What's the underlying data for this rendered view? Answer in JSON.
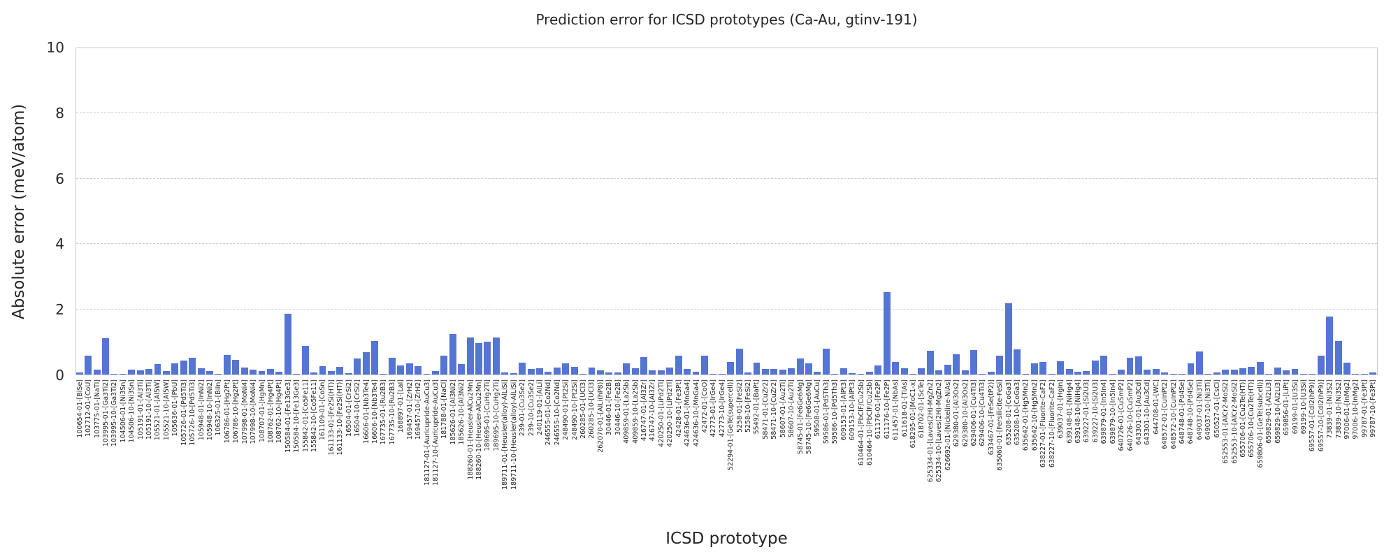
{
  "chart_data": {
    "type": "bar",
    "title": "Prediction error for ICSD prototypes (Ca-Au, gtinv-191)",
    "xlabel": "ICSD prototype",
    "ylabel": "Absolute error (meV/atom)",
    "ylim": [
      0,
      10
    ],
    "yticks": [
      0,
      2,
      4,
      6,
      8,
      10
    ],
    "grid": "horizontal-dashed",
    "legend": "none",
    "bar_color": "#5575d5",
    "grid_color": "#cccccc",
    "spine_color": "#cccccc",
    "text_color": "#262626",
    "categories": [
      "100654-01-[BiSe]",
      "102712-01-[CoU]",
      "103775-01-[NaTl]",
      "103995-01-[Ga3Ti2]",
      "103995-10-[Ga3Ti2]",
      "104506-01-[Ni3Sn]",
      "104506-10-[Ni3Sn]",
      "105191-01-[Al3Ti]",
      "105191-10-[Al3Ti]",
      "105521-01-[Al5W]",
      "105521-10-[Al5W]",
      "105636-01-[PbU]",
      "105726-01-[Pd5Ti3]",
      "105726-10-[Pd5Ti3]",
      "105948-01-[InNi2]",
      "105948-10-[InNi2]",
      "106325-01-[BiIn]",
      "106786-01-[Hg2Pt]",
      "106786-10-[Hg2Pt]",
      "107998-01-[MoNi4]",
      "107998-10-[MoNi4]",
      "108707-01-[HgMn]",
      "108762-01-[Hg4Pt]",
      "108762-10-[Hg4Pt]",
      "150584-01-[Fe13Ge3]",
      "150584-10-[Fe13Ge3]",
      "155842-01-[Co5Fe11]",
      "155842-10-[Co5Fe11]",
      "161109-01-[CoSn]",
      "161133-01-[Fe2Si(HT)]",
      "161133-10-[Fe2Si(HT)]",
      "16504-01-[CrSi2]",
      "16504-10-[CrSi2]",
      "16606-01-[Nb3Te4]",
      "16606-10-[Nb3Te4]",
      "167735-01-[Ru2B3]",
      "167735-10-[Ru2B3]",
      "168897-01-[LaI]",
      "169457-01-[ZrH2]",
      "169457-10-[ZrH2]",
      "181127-01-[Auricupride-AuCu3]",
      "181127-10-[Auricupride-AuCu3]",
      "181788-01-[NaCl]",
      "185626-01-[Al3Ni2]",
      "185626-10-[Al3Ni2]",
      "188260-01-[Heusler-AlCu2Mn]",
      "188260-10-[Heusler-AlCu2Mn]",
      "189695-01-[CuHg2Ti]",
      "189695-10-[CuHg2Ti]",
      "189711-01-[Heusler(alloy)-AlLiSi]",
      "189711-10-[Heusler(alloy)-AlLiSi]",
      "239-01-[Cu3Se2]",
      "239-10-[Cu3Se2]",
      "240119-01-[AlLi]",
      "246555-01-[Co2Nd]",
      "246555-10-[Co2Nd]",
      "248490-01-[Pt2Si]",
      "248490-10-[Pt2Si]",
      "260285-01-[UCl3]",
      "260285-10-[UCl3]",
      "262070-01-[AlLi(hP8)]",
      "30446-01-[Fe2B]",
      "30446-10-[Fe2B]",
      "409859-01-[La2Sb]",
      "409859-10-[La2Sb]",
      "416747-01-[Al3Zr]",
      "416747-10-[Al3Zr]",
      "420250-01-[LiPd2Tl]",
      "420250-10-[LiPd2Tl]",
      "42428-01-[Fe3Pt]",
      "424636-01-[MnGa4]",
      "424636-10-[MnGa4]",
      "42472-01-[CoO]",
      "42773-01-[IrGe4]",
      "42773-10-[IrGe4]",
      "52294-01-[GeTe(supercell)]",
      "5258-01-[FeSi2]",
      "5258-10-[FeSi2]",
      "55492-01-[BaPt]",
      "58471-01-[CuZr2]",
      "58471-10-[CuZr2]",
      "58607-01-[Au2Ti]",
      "58607-10-[Au2Ti]",
      "58745-01-[Fe6Ge6Mg]",
      "58745-10-[Fe6Ge6Mg]",
      "59508-01-[AuCu]",
      "59586-01-[Pd5Th3]",
      "59586-10-[Pd5Th3]",
      "609153-01-[AlPt3]",
      "609153-10-[AlPt3]",
      "610464-01-[PbClF/Cu2Sb]",
      "610464-10-[PbClF/Cu2Sb]",
      "611176-01-[Fe2P]",
      "611176-10-[Fe2P]",
      "611457-01-[NbAs]",
      "611618-01-[TiAs]",
      "618295-01-[MoC1-x]",
      "618702-01-[ScTe]",
      "625334-01-[Laves(2H)-MgZn2]",
      "625334-10-[Laves(2H)-MgZn2]",
      "626692-01-[Nickeline-NiAs]",
      "629380-01-[Al3Os2]",
      "629380-10-[Al3Os2]",
      "629406-01-[Cu4Ti3]",
      "629406-10-[Cu4Ti3]",
      "633467-01-[FeSe(tP2)]",
      "635060-01-[Fersilicite-FeSi]",
      "635208-01-[CoGa3]",
      "635208-10-[CoGa3]",
      "635642-01-[Hg5Mn2]",
      "635642-10-[Hg5Mn2]",
      "638227-01-[Fluorite-CaF2]",
      "638227-10-[Fluorite-CaF2]",
      "639037-01-[HgIn]",
      "639148-01-[NiHg4]",
      "639148-10-[NiHg4]",
      "639227-01-[Si2U3]",
      "639227-10-[Si2U3]",
      "639879-01-[In5In4]",
      "639879-10-[In5In4]",
      "640726-01-[CuSmP2]",
      "640726-10-[CuSmP2]",
      "643301-01-[Au3Cd]",
      "643301-10-[Au3Cd]",
      "644708-01-[WC]",
      "648572-01-[CuInPt2]",
      "648572-10-[CuInPt2]",
      "648748-01-[Pd4Se]",
      "648748-10-[Pd4Se]",
      "649037-01-[Ni3Ti]",
      "649037-10-[Ni3Ti]",
      "650527-01-[CsCl]",
      "652553-01-[AlCr2-MoSi2]",
      "652553-10-[AlCr2-MoSi2]",
      "655706-01-[Cu2Te(HT)]",
      "655706-10-[Cu2Te(HT)]",
      "659806-01-[GeTe(subcell)]",
      "659829-01-[Al2Li3]",
      "659829-10-[Al2Li3]",
      "659856-01-[LiPt]",
      "69199-01-[U3Si]",
      "69199-10-[U3Si]",
      "69557-01-[CdI2(hP9)]",
      "69557-10-[CdI2(hP9)]",
      "73839-01-[Ni3S2]",
      "73839-10-[Ni3S2]",
      "97006-01-[InMg2]",
      "97006-10-[InMg2]",
      "99787-01-[Fe3Pt]",
      "99787-10-[Fe3Pt]"
    ],
    "values": [
      0.06,
      0.58,
      0.15,
      1.11,
      0.01,
      0.01,
      0.16,
      0.12,
      0.18,
      0.32,
      0.11,
      0.35,
      0.43,
      0.51,
      0.2,
      0.1,
      0.03,
      0.6,
      0.46,
      0.21,
      0.15,
      0.1,
      0.18,
      0.08,
      1.86,
      0.01,
      0.87,
      0.06,
      0.25,
      0.11,
      0.23,
      0.04,
      0.49,
      0.69,
      1.02,
      0.01,
      0.51,
      0.28,
      0.34,
      0.25,
      0.01,
      0.1,
      0.58,
      1.25,
      0.33,
      1.13,
      0.97,
      1.0,
      1.13,
      0.06,
      0.04,
      0.37,
      0.18,
      0.2,
      0.08,
      0.21,
      0.34,
      0.23,
      0.01,
      0.21,
      0.13,
      0.06,
      0.06,
      0.34,
      0.2,
      0.53,
      0.13,
      0.13,
      0.22,
      0.59,
      0.17,
      0.08,
      0.59,
      0.02,
      0.03,
      0.39,
      0.8,
      0.06,
      0.37,
      0.17,
      0.18,
      0.14,
      0.2,
      0.49,
      0.34,
      0.08,
      0.79,
      0.01,
      0.2,
      0.04,
      0.03,
      0.09,
      0.27,
      2.53,
      0.39,
      0.2,
      0.01,
      0.2,
      0.72,
      0.12,
      0.3,
      0.62,
      0.13,
      0.75,
      0.01,
      0.08,
      0.58,
      2.18,
      0.78,
      0.01,
      0.35,
      0.39,
      0.02,
      0.41,
      0.17,
      0.08,
      0.11,
      0.43,
      0.59,
      0.01,
      0.16,
      0.52,
      0.55,
      0.16,
      0.18,
      0.06,
      0.01,
      0.01,
      0.35,
      0.7,
      0.01,
      0.06,
      0.15,
      0.16,
      0.19,
      0.24,
      0.38,
      0.01,
      0.21,
      0.13,
      0.17,
      0.02,
      0.03,
      0.58,
      1.78,
      1.04,
      0.36,
      0.01,
      0.01,
      0.07
    ]
  }
}
